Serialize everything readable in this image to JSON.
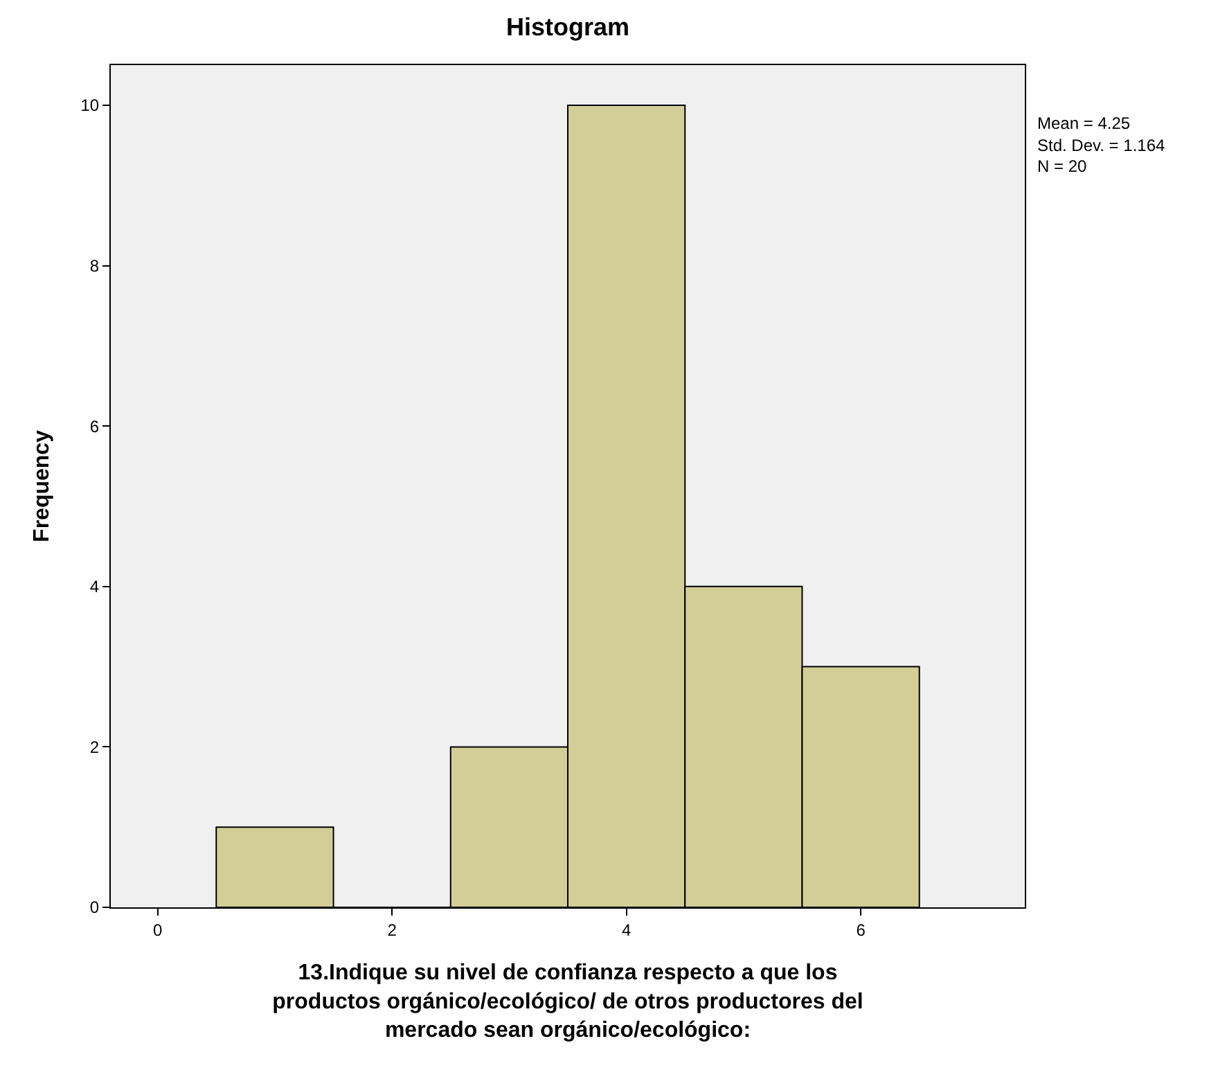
{
  "chart_data": {
    "type": "histogram",
    "title": "Histogram",
    "xlabel": "13.Indique su nivel de confianza respecto a que los productos orgánico/ecológico/ de otros productores del mercado sean orgánico/ecológico:",
    "ylabel": "Frequency",
    "bins": [
      0.5,
      1.5,
      2.5,
      3.5,
      4.5,
      5.5,
      6.5
    ],
    "values": [
      1,
      0,
      2,
      10,
      4,
      3
    ],
    "color": "#d3ce98",
    "xlim": [
      -0.4,
      7.4
    ],
    "xticks": [
      0,
      2,
      4,
      6
    ],
    "ylim": [
      0,
      10.5
    ],
    "yticks": [
      0,
      2,
      4,
      6,
      8,
      10
    ],
    "grid": false,
    "legend": false,
    "annotations": [
      "Mean = 4.25",
      "Std. Dev. = 1.164",
      "N = 20"
    ]
  }
}
